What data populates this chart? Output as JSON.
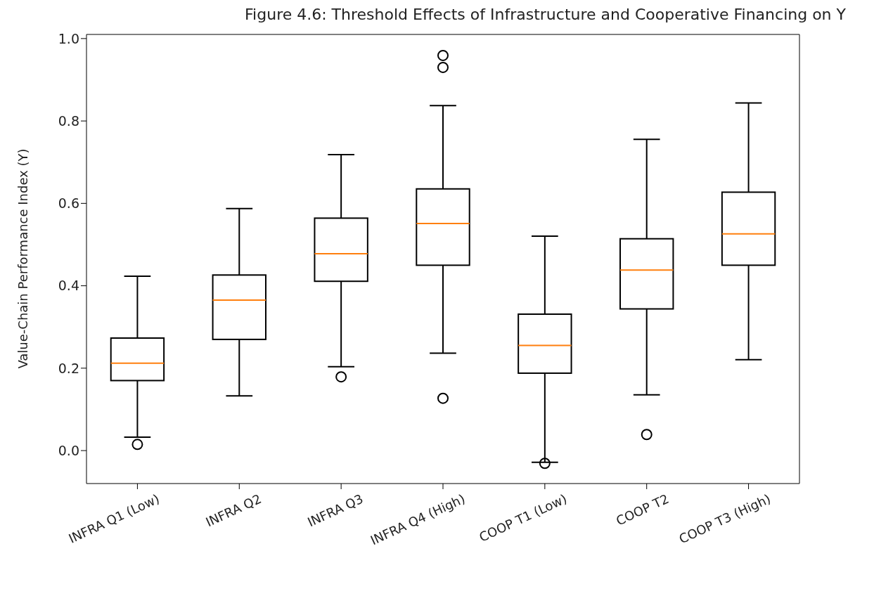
{
  "chart_data": {
    "type": "box",
    "title": "Figure 4.6: Threshold Effects of Infrastructure and Cooperative Financing on Y",
    "ylabel": "Value-Chain Performance Index (Y)",
    "categories": [
      "INFRA Q1 (Low)",
      "INFRA Q2",
      "INFRA Q3",
      "INFRA Q4 (High)",
      "COOP T1 (Low)",
      "COOP T2",
      "COOP T3 (High)"
    ],
    "ylim": [
      -0.08,
      1.01
    ],
    "yticks": [
      {
        "value": 0,
        "label": "0.0"
      },
      {
        "value": 0.2,
        "label": "0.2"
      },
      {
        "value": 0.4,
        "label": "0.4"
      },
      {
        "value": 0.6,
        "label": "0.6"
      },
      {
        "value": 0.8,
        "label": "0.8"
      },
      {
        "value": 1,
        "label": "1.0"
      }
    ],
    "grid": false,
    "series": [
      {
        "color": "#000000",
        "boxes": [
          {
            "low": 0.033,
            "q1": 0.17,
            "median": 0.212,
            "q3": 0.273,
            "high": 0.423,
            "outliers": [
              0.015
            ]
          },
          {
            "low": 0.133,
            "q1": 0.27,
            "median": 0.365,
            "q3": 0.426,
            "high": 0.587
          },
          {
            "low": 0.204,
            "q1": 0.411,
            "median": 0.478,
            "q3": 0.564,
            "high": 0.718,
            "outliers": [
              0.179
            ]
          },
          {
            "low": 0.237,
            "q1": 0.45,
            "median": 0.551,
            "q3": 0.635,
            "high": 0.837,
            "outliers": [
              0.959,
              0.93,
              0.127
            ]
          },
          {
            "low": -0.028,
            "q1": 0.188,
            "median": 0.255,
            "q3": 0.331,
            "high": 0.52,
            "outliers": [
              -0.031
            ]
          },
          {
            "low": 0.136,
            "q1": 0.344,
            "median": 0.438,
            "q3": 0.514,
            "high": 0.755,
            "outliers": [
              0.039
            ]
          },
          {
            "low": 0.221,
            "q1": 0.45,
            "median": 0.526,
            "q3": 0.627,
            "high": 0.843
          }
        ]
      }
    ]
  }
}
